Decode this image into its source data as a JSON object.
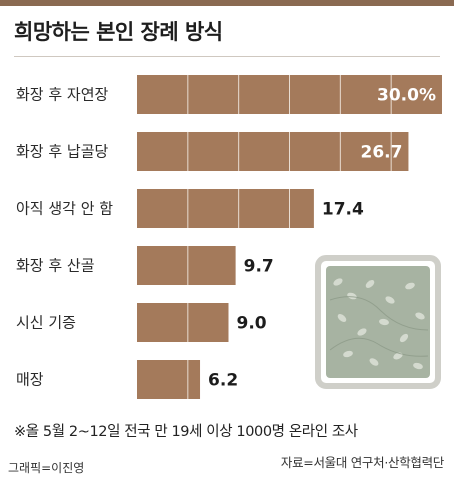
{
  "page": {
    "title": "희망하는 본인 장례 방식",
    "footnote": "※올 5월 2~12일 전국 만 19세 이상 1000명 온라인 조사",
    "credit": "그래픽=이진영",
    "source": "자료=서울대 연구처·산학협력단"
  },
  "colors": {
    "bar": "#a47a5b",
    "bar_divider": "#e9ddd2",
    "accent_bar": "#8a6a52",
    "urn_frame": "#cfcfc9",
    "urn_body": "#a7b3a2"
  },
  "chart_data": {
    "type": "bar",
    "orientation": "horizontal",
    "title": "희망하는 본인 장례 방식",
    "categories": [
      "화장 후 자연장",
      "화장 후 납골당",
      "아직 생각 안 함",
      "화장 후 산골",
      "시신 기증",
      "매장"
    ],
    "values": [
      30.0,
      26.7,
      17.4,
      9.7,
      9.0,
      6.2
    ],
    "value_labels": [
      "30.0%",
      "26.7",
      "17.4",
      "9.7",
      "9.0",
      "6.2"
    ],
    "xlim": [
      0,
      30.0
    ],
    "grid": false,
    "legend": "none"
  }
}
